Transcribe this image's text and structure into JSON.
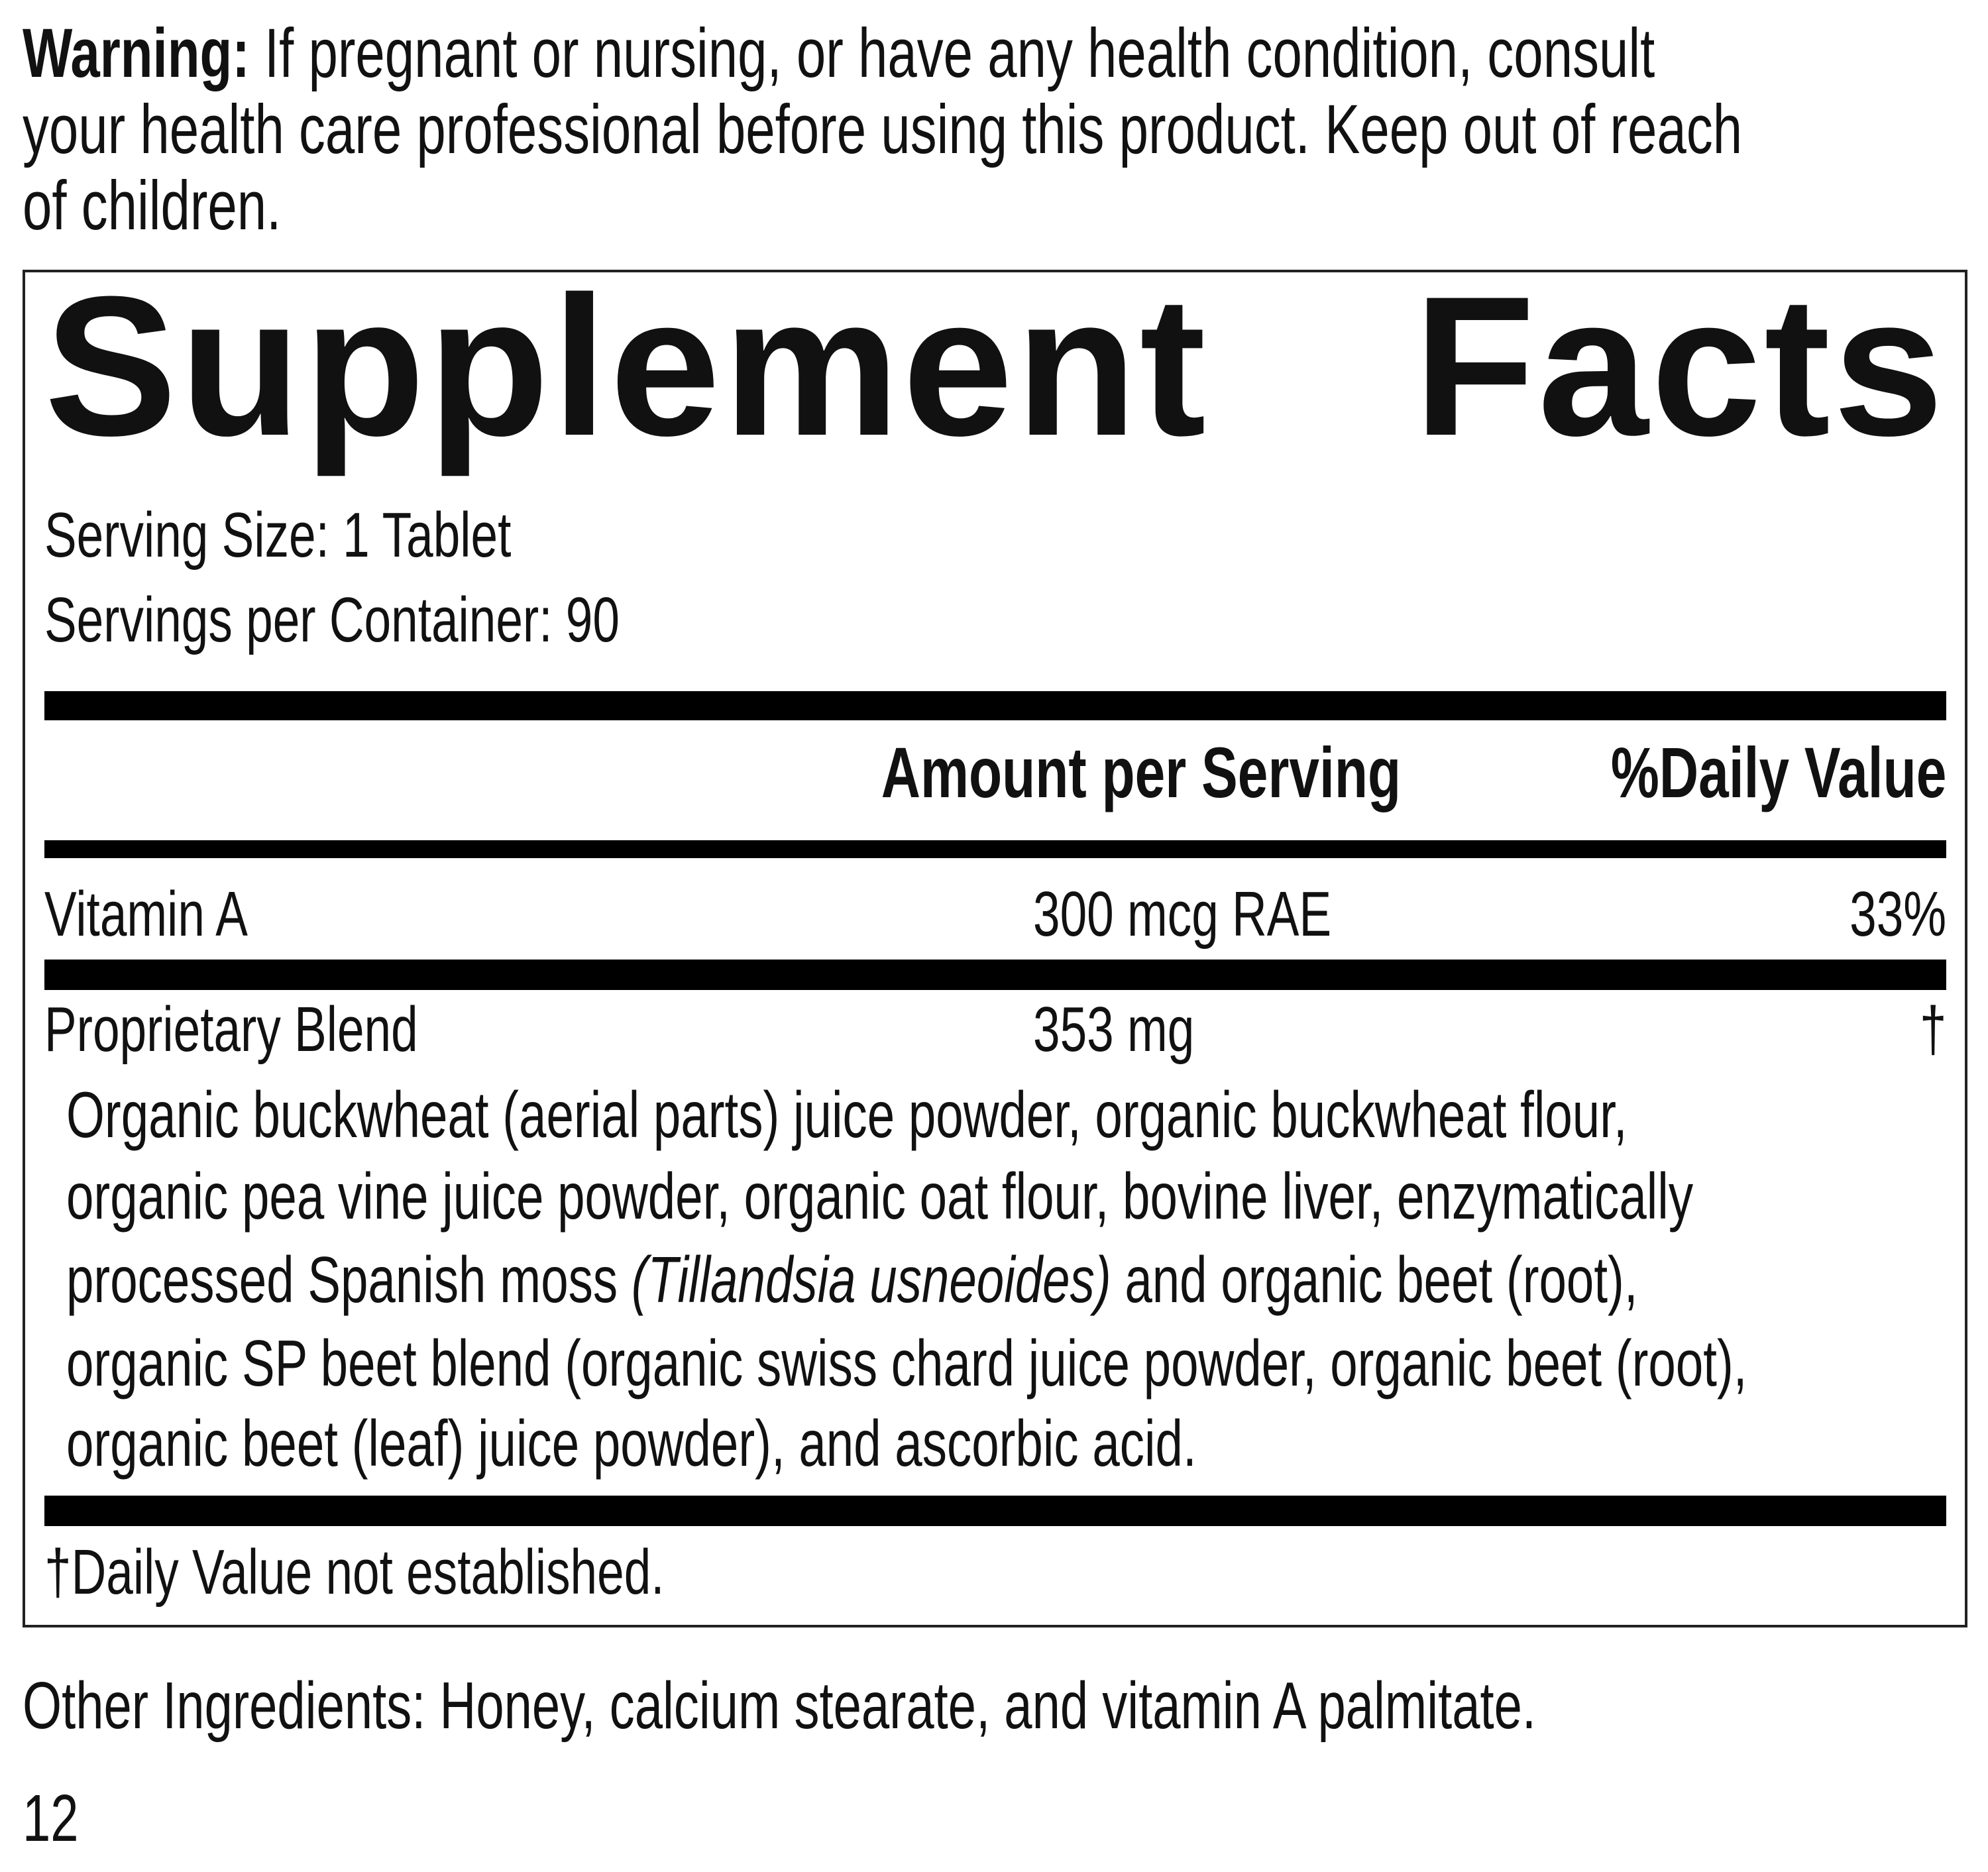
{
  "warning": {
    "label": "Warning:",
    "lines": [
      " If pregnant or nursing, or have any health condition, consult",
      "your health care professional before using this product. Keep out of reach",
      "of children."
    ]
  },
  "supplement_facts": {
    "title": "Supplement Facts",
    "serving_size": "Serving Size: 1 Tablet",
    "servings_per_container": "Servings per Container: 90",
    "header": {
      "amount": "Amount per Serving",
      "daily_value": "%Daily Value"
    },
    "rows": [
      {
        "name": "Vitamin A",
        "amount": "300 mcg RAE",
        "daily_value": "33%"
      },
      {
        "name": "Proprietary Blend",
        "amount": "353 mg",
        "daily_value": "†"
      }
    ],
    "blend_ingredients": {
      "line_1": "Organic buckwheat (aerial parts) juice powder, organic buckwheat flour,",
      "line_2": "organic pea vine juice powder, organic oat flour, bovine liver, enzymatically",
      "line_3": {
        "before": "processed Spanish moss ",
        "italic": "(Tillandsia usneoides)",
        "after": " and organic beet (root),"
      },
      "line_4": "organic SP beet blend (organic swiss chard juice powder, organic beet (root),",
      "line_5": "organic beet (leaf) juice powder), and ascorbic acid."
    },
    "footnote": "†Daily Value not established."
  },
  "other_ingredients": "Other Ingredients: Honey, calcium stearate, and vitamin A palmitate.",
  "page_number": "12"
}
